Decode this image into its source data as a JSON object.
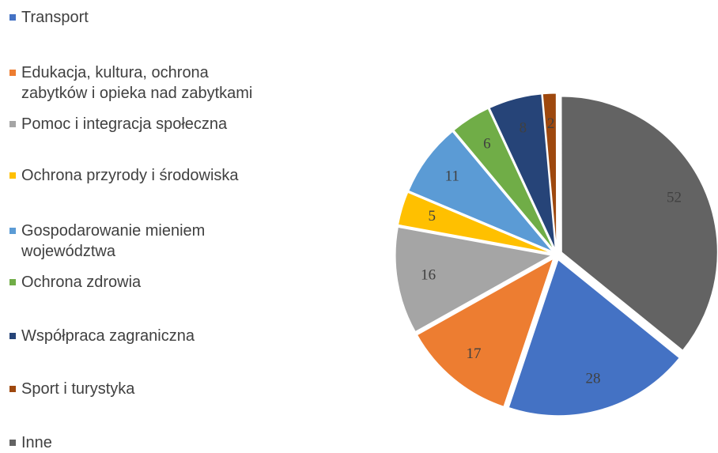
{
  "chart_data": {
    "type": "pie",
    "categories": [
      "Transport",
      "Edukacja, kultura, ochrona zabytków i opieka nad zabytkami",
      "Pomoc i integracja społeczna",
      "Ochrona przyrody i środowiska",
      "Gospodarowanie mieniem województwa",
      "Ochrona zdrowia",
      "Współpraca zagraniczna",
      "Sport i turystyka",
      "Inne"
    ],
    "values": [
      28,
      17,
      16,
      5,
      11,
      6,
      8,
      2,
      52
    ],
    "colors": [
      "#4472c4",
      "#ed7d31",
      "#a5a5a5",
      "#ffc000",
      "#5b9bd5",
      "#70ad47",
      "#264478",
      "#9e480e",
      "#636363"
    ],
    "legend": "left"
  }
}
